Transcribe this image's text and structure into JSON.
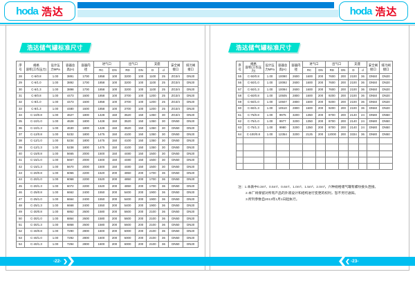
{
  "brand": {
    "logo_latin": "hoda",
    "logo_cjk": "浩达",
    "colors": {
      "cyan_accent": "#00C2EE",
      "blue_stripe": "#0082D8",
      "pale_stripe": "#CDEFF9",
      "logo_red": "#E8001C",
      "badge_teal": "#00DFCE",
      "footer_cyan": "#00BEF0"
    }
  },
  "table_header": {
    "widths": [
      4.5,
      13,
      8,
      8.5,
      8.5,
      8.5,
      6,
      8.5,
      6,
      7,
      5,
      8.25,
      8.25
    ],
    "main": [
      {
        "label": "序\n号"
      },
      {
        "label": "规格\n容积(工作压力)"
      },
      {
        "label": "设计压\n力MPa"
      },
      {
        "label": "容器总\n高(H)"
      },
      {
        "label": "容器内\n径"
      },
      {
        "label": "进气口",
        "span": 2
      },
      {
        "label": "出气口",
        "span": 2
      },
      {
        "label": "支座",
        "span": 2
      },
      {
        "label": "安全阀\n接口"
      },
      {
        "label": "排污阀\n接口"
      }
    ],
    "subs": [
      "RC",
      "DN",
      "RD",
      "DN",
      "D",
      "d"
    ]
  },
  "left_page": {
    "section_title": "浩达储气罐标准尺寸",
    "page_number": "-22-",
    "table": {
      "empty_rows": 0,
      "rows": [
        [
          "28",
          "C-6/0.8",
          "1.00",
          "3891",
          "1700",
          "1858",
          "100",
          "3200",
          "100",
          "1100",
          "25",
          "ZG3/4",
          "DN20"
        ],
        [
          "29",
          "C-6/1.0",
          "1.00",
          "3892",
          "1700",
          "1858",
          "100",
          "3200",
          "100",
          "1100",
          "25",
          "ZG3/4",
          "DN20"
        ],
        [
          "30",
          "C-6/1.3",
          "1.00",
          "3898",
          "1700",
          "1858",
          "100",
          "3200",
          "100",
          "1100",
          "25",
          "ZG3/4",
          "DN20"
        ],
        [
          "31",
          "C-8/0.8",
          "1.00",
          "4473",
          "1600",
          "1858",
          "100",
          "3700",
          "100",
          "1200",
          "25",
          "ZG3/4",
          "DN20"
        ],
        [
          "32",
          "C-8/1.0",
          "1.00",
          "4473",
          "1600",
          "1858",
          "100",
          "3700",
          "100",
          "1200",
          "25",
          "ZG3/4",
          "DN20"
        ],
        [
          "33",
          "C-8/1.3",
          "1.00",
          "4480",
          "1600",
          "1858",
          "100",
          "3700",
          "100",
          "1200",
          "25",
          "ZG3/4",
          "DN20"
        ],
        [
          "34",
          "C-10/0.8",
          "1.00",
          "4627",
          "1800",
          "1428",
          "150",
          "3520",
          "150",
          "1350",
          "30",
          "ZG3/4",
          "DN20"
        ],
        [
          "35",
          "C-10/1.0",
          "1.00",
          "4628",
          "1800",
          "1428",
          "150",
          "3520",
          "150",
          "1350",
          "30",
          "DN50",
          "DN20"
        ],
        [
          "36",
          "C-10/1.3",
          "1.00",
          "4630",
          "1800",
          "1428",
          "150",
          "3520",
          "150",
          "1350",
          "30",
          "DN50",
          "DN20"
        ],
        [
          "37",
          "C-12/0.8",
          "1.00",
          "5232",
          "1800",
          "1475",
          "150",
          "4100",
          "150",
          "1350",
          "30",
          "DN50",
          "DN20"
        ],
        [
          "38",
          "C-12/1.0",
          "1.00",
          "5234",
          "1800",
          "1475",
          "150",
          "4100",
          "150",
          "1350",
          "30",
          "DN50",
          "DN20"
        ],
        [
          "39",
          "C-12/1.3",
          "1.00",
          "5238",
          "1800",
          "1475",
          "150",
          "4100",
          "150",
          "1350",
          "30",
          "DN50",
          "DN20"
        ],
        [
          "40",
          "C-15/0.8",
          "1.00",
          "5665",
          "2000",
          "1500",
          "150",
          "4480",
          "150",
          "1500",
          "30",
          "DN50",
          "DN20"
        ],
        [
          "41",
          "C-15/1.0",
          "1.00",
          "5667",
          "2000",
          "1500",
          "150",
          "4480",
          "150",
          "1500",
          "30",
          "DN50",
          "DN20"
        ],
        [
          "42",
          "C-15/1.3",
          "1.00",
          "5670",
          "2000",
          "1500",
          "150",
          "4480",
          "150",
          "1500",
          "30",
          "DN50",
          "DN20"
        ],
        [
          "43",
          "C-20/0.8",
          "1.00",
          "6066",
          "2200",
          "1520",
          "200",
          "4850",
          "200",
          "1700",
          "36",
          "DN50",
          "DN20"
        ],
        [
          "44",
          "C-20/1.0",
          "1.00",
          "6068",
          "2200",
          "1520",
          "200",
          "4850",
          "200",
          "1700",
          "36",
          "DN50",
          "DN20"
        ],
        [
          "45",
          "C-20/1.3",
          "1.00",
          "6072",
          "2200",
          "1520",
          "200",
          "4850",
          "200",
          "1700",
          "36",
          "DN50",
          "DN20"
        ],
        [
          "46",
          "C-25/0.8",
          "1.00",
          "6662",
          "2400",
          "1550",
          "200",
          "5400",
          "200",
          "1900",
          "36",
          "DN50",
          "DN20"
        ],
        [
          "47",
          "C-25/1.0",
          "1.00",
          "6664",
          "2400",
          "1550",
          "200",
          "5400",
          "200",
          "1900",
          "36",
          "DN50",
          "DN20"
        ],
        [
          "48",
          "C-25/1.3",
          "1.00",
          "6668",
          "2400",
          "1550",
          "200",
          "5400",
          "200",
          "1900",
          "36",
          "DN50",
          "DN20"
        ],
        [
          "49",
          "C-30/0.8",
          "1.00",
          "6862",
          "2600",
          "1580",
          "200",
          "5600",
          "200",
          "2100",
          "36",
          "DN50",
          "DN20"
        ],
        [
          "50",
          "C-30/1.0",
          "1.00",
          "6864",
          "2600",
          "1580",
          "200",
          "5600",
          "200",
          "2100",
          "36",
          "DN50",
          "DN20"
        ],
        [
          "51",
          "C-30/1.3",
          "1.00",
          "6868",
          "2600",
          "1580",
          "200",
          "5600",
          "200",
          "2100",
          "36",
          "DN50",
          "DN20"
        ],
        [
          "52",
          "C-40/0.8",
          "1.00",
          "7290",
          "2800",
          "1600",
          "200",
          "6000",
          "200",
          "2100",
          "36",
          "DN50",
          "DN20"
        ],
        [
          "53",
          "C-40/1.0",
          "1.00",
          "7292",
          "2800",
          "1600",
          "200",
          "6000",
          "200",
          "2100",
          "36",
          "DN50",
          "DN20"
        ],
        [
          "54",
          "C-40/1.3",
          "1.00",
          "7294",
          "2800",
          "1600",
          "200",
          "6000",
          "200",
          "2100",
          "36",
          "DN50",
          "DN20"
        ]
      ]
    }
  },
  "right_page": {
    "section_title": "浩达储气罐标准尺寸",
    "page_number": "-23-",
    "table": {
      "empty_rows": 5,
      "rows": [
        [
          "55",
          "C-50/0.8",
          "1.00",
          "10090",
          "2600",
          "1600",
          "200",
          "7600",
          "200",
          "2100",
          "36",
          "DN50",
          "DN20"
        ],
        [
          "56",
          "C-50/1.0",
          "1.00",
          "10092",
          "2600",
          "1600",
          "200",
          "7600",
          "200",
          "2100",
          "36",
          "DN50",
          "DN20"
        ],
        [
          "57",
          "C-50/1.3",
          "1.00",
          "10094",
          "2600",
          "1600",
          "200",
          "7600",
          "200",
          "2100",
          "36",
          "DN50",
          "DN20"
        ],
        [
          "58",
          "C-60/0.8",
          "1.00",
          "10505",
          "2800",
          "1600",
          "200",
          "9200",
          "200",
          "2100",
          "36",
          "DN50",
          "DN20"
        ],
        [
          "59",
          "C-60/1.0",
          "1.00",
          "10507",
          "2800",
          "1600",
          "200",
          "9200",
          "200",
          "2100",
          "36",
          "DN50",
          "DN20"
        ],
        [
          "60",
          "C-60/1.3",
          "1.00",
          "10510",
          "2800",
          "1600",
          "200",
          "9200",
          "200",
          "2100",
          "36",
          "DN50",
          "DN20"
        ],
        [
          "61",
          "C-75/0.8",
          "1.00",
          "9975",
          "3200",
          "1350",
          "200",
          "8700",
          "200",
          "2140",
          "24",
          "DN80",
          "DN50"
        ],
        [
          "62",
          "C-75/1.0",
          "1.00",
          "9977",
          "3200",
          "1350",
          "200",
          "8700",
          "200",
          "2140",
          "24",
          "DN80",
          "DN50"
        ],
        [
          "63",
          "C-75/1.3",
          "1.00",
          "9980",
          "3200",
          "1350",
          "200",
          "8700",
          "200",
          "2140",
          "24",
          "DN80",
          "DN50"
        ],
        [
          "64",
          "C-100/0.8",
          "1.00",
          "12354",
          "3200",
          "2125",
          "200",
          "12000",
          "200",
          "3334",
          "36",
          "DN80",
          "DN50"
        ]
      ]
    },
    "notes": [
      "注：1.本表中0.3m³、0.5m³、0.6m³、1.0m³、1.5m³、2.0m³，六种规格储气罐有螺纹接头连接。",
      "2.本厂将保留对所有产品的外观设计和结构进行变更的权利，恕不另行通知。",
      "3.所列参数自2013年1月1日起执行。"
    ]
  }
}
